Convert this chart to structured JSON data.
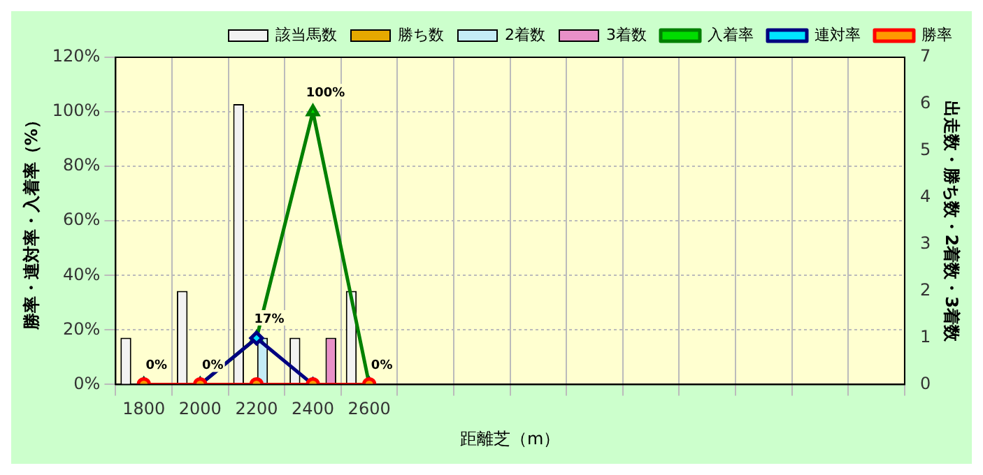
{
  "chart_data": {
    "type": "bar",
    "xlabel": "距離芝（m）",
    "ylabel": "勝率・連対率・入着率（%）",
    "y2label": "出走数・勝ち数・2着数・3着数",
    "categories": [
      "1800",
      "2000",
      "2200",
      "2400",
      "2600",
      null,
      null,
      null,
      null,
      null,
      null,
      null,
      null,
      null
    ],
    "series": [
      {
        "name": "該当馬数",
        "axis": "y2",
        "color": "#f2f2f2",
        "values": [
          1,
          2,
          6,
          1,
          2,
          null,
          null,
          null,
          null,
          null,
          null,
          null,
          null,
          null
        ]
      },
      {
        "name": "勝ち数",
        "axis": "y2",
        "color": "#e6a800",
        "values": [
          0,
          0,
          0,
          0,
          0,
          null,
          null,
          null,
          null,
          null,
          null,
          null,
          null,
          null
        ]
      },
      {
        "name": "2着数",
        "axis": "y2",
        "color": "#c4ecf6",
        "values": [
          0,
          0,
          1,
          0,
          0,
          null,
          null,
          null,
          null,
          null,
          null,
          null,
          null,
          null
        ]
      },
      {
        "name": "3着数",
        "axis": "y2",
        "color": "#e890c8",
        "values": [
          0,
          0,
          0,
          1,
          0,
          null,
          null,
          null,
          null,
          null,
          null,
          null,
          null,
          null
        ]
      },
      {
        "name": "入着率",
        "type": "line",
        "axis": "y",
        "color": "#008000",
        "marker": "triangle",
        "values": [
          0,
          0,
          17,
          100,
          0,
          null,
          null,
          null,
          null,
          null,
          null,
          null,
          null,
          null
        ],
        "value_labels": [
          "0%",
          "0%",
          "17%",
          "100%",
          "0%",
          null,
          null,
          null,
          null,
          null,
          null,
          null,
          null,
          null
        ]
      },
      {
        "name": "連対率",
        "type": "line",
        "axis": "y",
        "color": "#000080",
        "marker": "diamond",
        "values": [
          0,
          0,
          17,
          0,
          0,
          null,
          null,
          null,
          null,
          null,
          null,
          null,
          null,
          null
        ]
      },
      {
        "name": "勝率",
        "type": "line",
        "axis": "y",
        "color": "#ff0000",
        "marker": "circle",
        "values": [
          0,
          0,
          0,
          0,
          0,
          null,
          null,
          null,
          null,
          null,
          null,
          null,
          null,
          null
        ]
      }
    ],
    "ylim": [
      0,
      120
    ],
    "yticks": [
      {
        "value": 0,
        "label": "0%"
      },
      {
        "value": 20,
        "label": "20%"
      },
      {
        "value": 40,
        "label": "40%"
      },
      {
        "value": 60,
        "label": "60%"
      },
      {
        "value": 80,
        "label": "80%"
      },
      {
        "value": 100,
        "label": "100%"
      },
      {
        "value": 120,
        "label": "120%"
      }
    ],
    "y2lim": [
      0,
      7
    ],
    "y2ticks": [
      0,
      1,
      2,
      3,
      4,
      5,
      6,
      7
    ],
    "grid": true,
    "legend": "top"
  }
}
